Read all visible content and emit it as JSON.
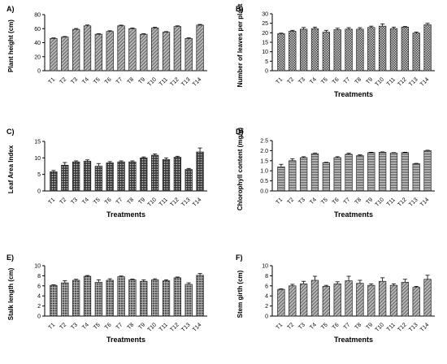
{
  "figure": {
    "background": "#ffffff",
    "bar_stroke": "#222222",
    "bar_fill": "#9a9a9a"
  },
  "chart_data": [
    {
      "panel": "A)",
      "type": "bar",
      "pattern": "diag",
      "categories": [
        "T1",
        "T2",
        "T3",
        "T4",
        "T5",
        "T6",
        "T7",
        "T8",
        "T9",
        "T10",
        "T11",
        "T12",
        "T13",
        "T14"
      ],
      "values": [
        46,
        48,
        59,
        64,
        52,
        56,
        64,
        60,
        52,
        61,
        55,
        63,
        46,
        65
      ],
      "errors": [
        0.8,
        0.8,
        1.2,
        1.2,
        0.8,
        1.0,
        1.0,
        1.0,
        0.8,
        1.0,
        0.8,
        1.0,
        0.8,
        1.0
      ],
      "ylabel": "Plant height (cm)",
      "xlabel": "",
      "ylim": [
        0,
        80
      ],
      "yticks": [
        0,
        20,
        40,
        60,
        80
      ]
    },
    {
      "panel": "B)",
      "type": "bar",
      "pattern": "checker",
      "categories": [
        "T1",
        "T2",
        "T3",
        "T4",
        "T5",
        "T6",
        "T7",
        "T8",
        "T9",
        "T10",
        "T11",
        "T12",
        "T13",
        "T14"
      ],
      "values": [
        19.5,
        20.8,
        21.9,
        22.2,
        20.3,
        21.6,
        21.9,
        21.9,
        22.8,
        23.5,
        22.2,
        23.0,
        19.8,
        24.2
      ],
      "errors": [
        0.3,
        0.5,
        0.9,
        0.8,
        1.0,
        0.8,
        0.8,
        0.8,
        0.7,
        1.2,
        0.8,
        0.3,
        0.6,
        0.8
      ],
      "ylabel": "Number of leaves per plant",
      "xlabel": "Treatments",
      "ylim": [
        0,
        30
      ],
      "yticks": [
        0,
        5,
        10,
        15,
        20,
        25,
        30
      ]
    },
    {
      "panel": "C)",
      "type": "bar",
      "pattern": "dots",
      "categories": [
        "T1",
        "T2",
        "T3",
        "T4",
        "T5",
        "T6",
        "T7",
        "T8",
        "T9",
        "T10",
        "T11",
        "T12",
        "T13",
        "T14"
      ],
      "values": [
        5.8,
        7.8,
        8.8,
        9.0,
        7.5,
        8.5,
        8.8,
        8.8,
        10.0,
        10.8,
        9.5,
        10.2,
        6.5,
        11.8
      ],
      "errors": [
        0.4,
        0.8,
        0.3,
        0.4,
        0.8,
        0.4,
        0.3,
        0.3,
        0.3,
        0.4,
        0.5,
        0.3,
        0.3,
        1.2
      ],
      "ylabel": "Leaf Area Index",
      "xlabel": "Treatments",
      "ylim": [
        0,
        15
      ],
      "yticks": [
        0,
        5,
        10,
        15
      ]
    },
    {
      "panel": "D)",
      "type": "bar",
      "pattern": "hstripe",
      "categories": [
        "T1",
        "T2",
        "T3",
        "T4",
        "T5",
        "T6",
        "T7",
        "T8",
        "T9",
        "T10",
        "T11",
        "T12",
        "T13",
        "T14"
      ],
      "values": [
        1.2,
        1.5,
        1.65,
        1.85,
        1.4,
        1.65,
        1.82,
        1.75,
        1.9,
        1.92,
        1.88,
        1.9,
        1.35,
        2.0
      ],
      "errors": [
        0.12,
        0.1,
        0.05,
        0.03,
        0.02,
        0.05,
        0.05,
        0.04,
        0.02,
        0.02,
        0.02,
        0.02,
        0.02,
        0.02
      ],
      "ylabel": "Chlorophyll content (mg/g)",
      "xlabel": "Treatments",
      "ylim": [
        0,
        2.5
      ],
      "yticks": [
        0.0,
        0.5,
        1.0,
        1.5,
        2.0,
        2.5
      ]
    },
    {
      "panel": "E)",
      "type": "bar",
      "pattern": "weave",
      "categories": [
        "T1",
        "T2",
        "T3",
        "T4",
        "T5",
        "T6",
        "T7",
        "T8",
        "T9",
        "T10",
        "T11",
        "T12",
        "T13",
        "T14"
      ],
      "values": [
        6.1,
        6.6,
        7.1,
        7.9,
        6.7,
        7.1,
        7.8,
        7.2,
        6.9,
        7.2,
        7.0,
        7.6,
        6.3,
        8.1
      ],
      "errors": [
        0.1,
        0.4,
        0.2,
        0.15,
        0.5,
        0.3,
        0.15,
        0.15,
        0.3,
        0.2,
        0.2,
        0.15,
        0.3,
        0.35
      ],
      "ylabel": "Stalk length (cm)",
      "xlabel": "Treatments",
      "ylim": [
        0,
        10
      ],
      "yticks": [
        0,
        2,
        4,
        6,
        8,
        10
      ]
    },
    {
      "panel": "F)",
      "type": "bar",
      "pattern": "diag",
      "categories": [
        "T1",
        "T2",
        "T3",
        "T4",
        "T5",
        "T6",
        "T7",
        "T8",
        "T9",
        "T10",
        "T11",
        "T12",
        "T13",
        "T14"
      ],
      "values": [
        5.3,
        6.0,
        6.4,
        7.1,
        5.9,
        6.4,
        7.0,
        6.5,
        6.1,
        6.9,
        6.1,
        6.7,
        5.7,
        7.3
      ],
      "errors": [
        0.1,
        0.3,
        0.5,
        0.8,
        0.2,
        0.4,
        0.9,
        0.6,
        0.3,
        0.7,
        0.3,
        0.6,
        0.2,
        0.8
      ],
      "ylabel": "Stem girth (cm)",
      "xlabel": "Treatments",
      "ylim": [
        0,
        10
      ],
      "yticks": [
        0,
        2,
        4,
        6,
        8,
        10
      ]
    }
  ]
}
